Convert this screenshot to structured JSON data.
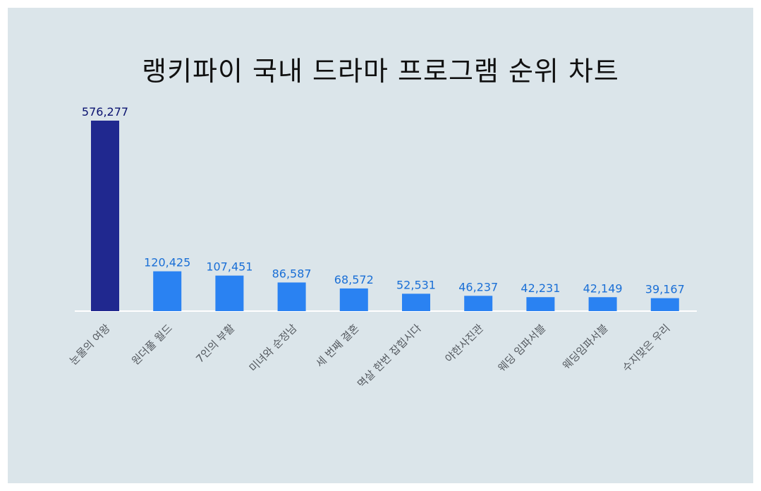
{
  "chart_data": {
    "type": "bar",
    "title": "랭키파이 국내 드라마 프로그램 순위 차트",
    "categories": [
      "눈물의 여왕",
      "원더풀 월드",
      "7인의 부활",
      "미녀와 순정남",
      "세 번째 결혼",
      "멱살 한번 잡힙시다",
      "야한사진관",
      "웨딩 임파서블",
      "웨딩임파서블",
      "수지맞은 우리"
    ],
    "values": [
      576277,
      120425,
      107451,
      86587,
      68572,
      52531,
      46237,
      42231,
      42149,
      39167
    ],
    "value_labels": [
      "576,277",
      "120,425",
      "107,451",
      "86,587",
      "68,572",
      "52,531",
      "46,237",
      "42,231",
      "42,149",
      "39,167"
    ],
    "highlight_index": 0,
    "ylim": [
      0,
      576277
    ],
    "grid": false,
    "legend": "none",
    "colors": {
      "highlight_bar": "#20288f",
      "highlight_label": "#0a1270",
      "bar": "#2a82f2",
      "label": "#1a6fd6",
      "axis": "#ffffff",
      "category_label": "#555a60"
    }
  }
}
